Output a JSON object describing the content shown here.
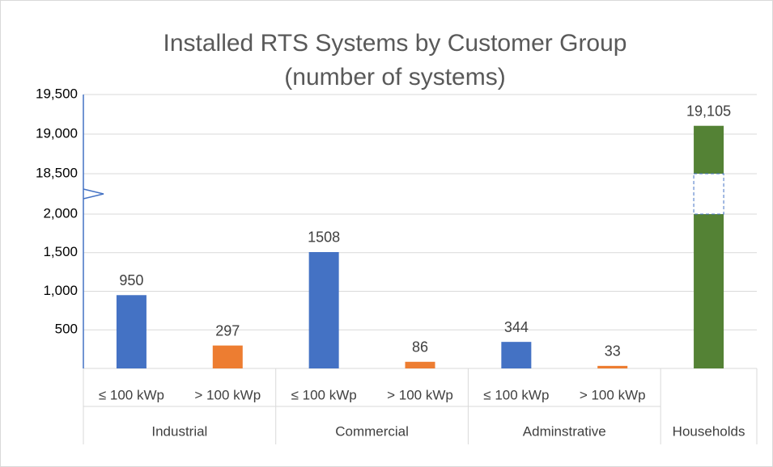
{
  "chart_data": {
    "type": "bar",
    "title": "Installed RTS Systems by Customer Group",
    "subtitle": "(number of systems)",
    "groups": [
      {
        "name": "Industrial",
        "categories": [
          "≤ 100 kWp",
          "> 100 kWp"
        ]
      },
      {
        "name": "Commercial",
        "categories": [
          "≤ 100 kWp",
          "> 100 kWp"
        ]
      },
      {
        "name": "Adminstrative",
        "categories": [
          "≤ 100 kWp",
          "> 100 kWp"
        ]
      },
      {
        "name": "Households",
        "categories": [
          null
        ]
      }
    ],
    "values": [
      950,
      297,
      1508,
      86,
      344,
      33,
      19105
    ],
    "value_labels": [
      "950",
      "297",
      "1508",
      "86",
      "344",
      "33",
      "19,105"
    ],
    "colors": [
      "#4472c4",
      "#ed7d31",
      "#4472c4",
      "#ed7d31",
      "#4472c4",
      "#ed7d31",
      "#548235"
    ],
    "ylim": [
      0,
      19500
    ],
    "ylim_segments": [
      [
        0,
        2000
      ],
      [
        18500,
        19500
      ]
    ],
    "yticks": [
      500,
      {
        "value": 1000,
        "label": "1,000"
      },
      {
        "value": 1500,
        "label": "1,500"
      },
      {
        "value": 2000,
        "label": "2,000"
      },
      {
        "value": 18500,
        "label": "18,500"
      },
      {
        "value": 19000,
        "label": "19,000"
      },
      {
        "value": 19500,
        "label": "19,500"
      }
    ],
    "grid": true
  }
}
